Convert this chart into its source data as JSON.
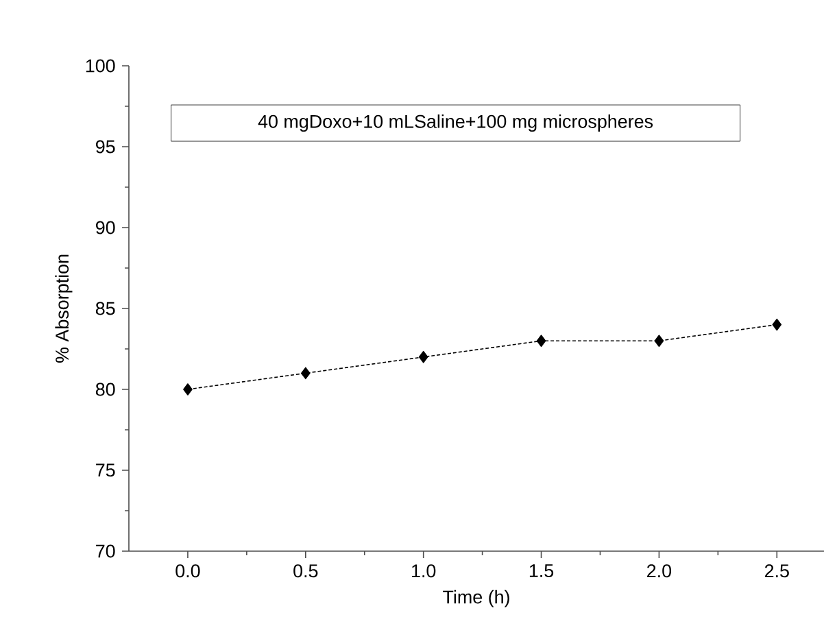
{
  "chart_data": {
    "type": "line",
    "xlabel": "Time (h)",
    "ylabel": "% Absorption",
    "annotations": [
      "40 mgDoxo+10 mLSaline+100 mg microspheres"
    ],
    "x": [
      0.0,
      0.5,
      1.0,
      1.5,
      2.0,
      2.5
    ],
    "series": [
      {
        "color": "#000000",
        "values": [
          80,
          81,
          82,
          83,
          83,
          84
        ]
      }
    ],
    "xlim": [
      -0.25,
      2.7
    ],
    "ylim": [
      70,
      100
    ],
    "xticks": [
      {
        "value": 0,
        "label": "0.0"
      },
      {
        "value": 0.5,
        "label": "0.5"
      },
      {
        "value": 1,
        "label": "1.0"
      },
      {
        "value": 1.5,
        "label": "1.5"
      },
      {
        "value": 2,
        "label": "2.0"
      },
      {
        "value": 2.5,
        "label": "2.5"
      }
    ],
    "yticks": [
      70,
      75,
      80,
      85,
      90,
      95,
      100
    ],
    "grid": false,
    "marker": "diamond",
    "line_style": "dashed"
  }
}
